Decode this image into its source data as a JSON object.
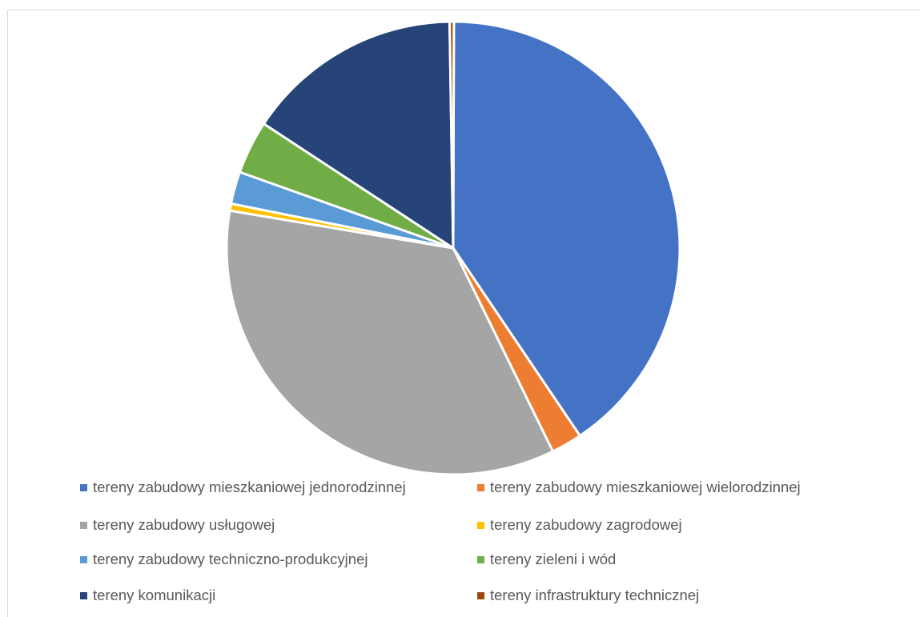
{
  "chart_data": {
    "type": "pie",
    "title": "",
    "slices": [
      {
        "name": "tereny zabudowy mieszkaniowej jednorodzinnej",
        "value": 40.5,
        "color": "#4472C4"
      },
      {
        "name": "tereny zabudowy mieszkaniowej wielorodzinnej",
        "value": 2.2,
        "color": "#ED7D31"
      },
      {
        "name": "tereny zabudowy usługowej",
        "value": 34.9,
        "color": "#A5A5A5"
      },
      {
        "name": "tereny zabudowy zagrodowej",
        "value": 0.5,
        "color": "#FFC000"
      },
      {
        "name": "tereny zabudowy techniczno-produkcyjnej",
        "value": 2.3,
        "color": "#5B9BD5"
      },
      {
        "name": "tereny zieleni i wód",
        "value": 3.8,
        "color": "#70AD47"
      },
      {
        "name": "tereny komunikacji",
        "value": 15.5,
        "color": "#264478"
      },
      {
        "name": "tereny infrastruktury technicznej",
        "value": 0.3,
        "color": "#9E480E"
      }
    ],
    "legend_position": "bottom"
  }
}
